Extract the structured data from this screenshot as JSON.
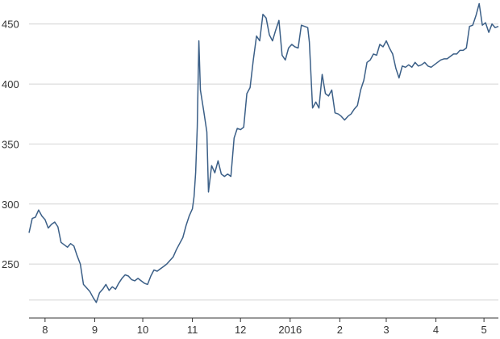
{
  "chart_data": {
    "type": "line",
    "title": "",
    "xlabel": "",
    "ylabel": "",
    "ylim": [
      205,
      470
    ],
    "grid": true,
    "legend": "none",
    "y_ticks": [
      {
        "value": 250,
        "label": "250"
      },
      {
        "value": 300,
        "label": "300"
      },
      {
        "value": 350,
        "label": "350"
      },
      {
        "value": 400,
        "label": "400"
      },
      {
        "value": 450,
        "label": "450"
      }
    ],
    "x_ticks": [
      {
        "date": "2015-08-01",
        "label": "8"
      },
      {
        "date": "2015-09-01",
        "label": "9"
      },
      {
        "date": "2015-10-01",
        "label": "10"
      },
      {
        "date": "2015-11-01",
        "label": "11"
      },
      {
        "date": "2015-12-01",
        "label": "12"
      },
      {
        "date": "2016-01-01",
        "label": "2016"
      },
      {
        "date": "2016-02-01",
        "label": "2"
      },
      {
        "date": "2016-03-01",
        "label": "3"
      },
      {
        "date": "2016-04-01",
        "label": "4"
      },
      {
        "date": "2016-05-01",
        "label": "5"
      }
    ],
    "x_range": [
      "2015-07-22",
      "2016-05-10"
    ],
    "colors": {
      "line": "#3b5f87",
      "grid": "#d4d4d4",
      "axis": "#333333"
    },
    "series": [
      {
        "points": [
          [
            "2015-07-22",
            276
          ],
          [
            "2015-07-24",
            288
          ],
          [
            "2015-07-26",
            289
          ],
          [
            "2015-07-28",
            295
          ],
          [
            "2015-07-30",
            290
          ],
          [
            "2015-08-01",
            287
          ],
          [
            "2015-08-03",
            280
          ],
          [
            "2015-08-05",
            283
          ],
          [
            "2015-08-07",
            285
          ],
          [
            "2015-08-09",
            281
          ],
          [
            "2015-08-11",
            268
          ],
          [
            "2015-08-13",
            266
          ],
          [
            "2015-08-15",
            264
          ],
          [
            "2015-08-17",
            267
          ],
          [
            "2015-08-19",
            265
          ],
          [
            "2015-08-21",
            257
          ],
          [
            "2015-08-23",
            250
          ],
          [
            "2015-08-25",
            233
          ],
          [
            "2015-08-27",
            230
          ],
          [
            "2015-08-29",
            227
          ],
          [
            "2015-08-31",
            222
          ],
          [
            "2015-09-02",
            218
          ],
          [
            "2015-09-04",
            226
          ],
          [
            "2015-09-06",
            229
          ],
          [
            "2015-09-08",
            233
          ],
          [
            "2015-09-10",
            228
          ],
          [
            "2015-09-12",
            231
          ],
          [
            "2015-09-14",
            229
          ],
          [
            "2015-09-16",
            234
          ],
          [
            "2015-09-18",
            238
          ],
          [
            "2015-09-20",
            241
          ],
          [
            "2015-09-22",
            240
          ],
          [
            "2015-09-24",
            237
          ],
          [
            "2015-09-26",
            236
          ],
          [
            "2015-09-28",
            238
          ],
          [
            "2015-09-30",
            236
          ],
          [
            "2015-10-02",
            234
          ],
          [
            "2015-10-04",
            233
          ],
          [
            "2015-10-06",
            240
          ],
          [
            "2015-10-08",
            245
          ],
          [
            "2015-10-10",
            244
          ],
          [
            "2015-10-12",
            246
          ],
          [
            "2015-10-14",
            248
          ],
          [
            "2015-10-16",
            250
          ],
          [
            "2015-10-18",
            253
          ],
          [
            "2015-10-20",
            256
          ],
          [
            "2015-10-22",
            262
          ],
          [
            "2015-10-24",
            267
          ],
          [
            "2015-10-26",
            272
          ],
          [
            "2015-10-28",
            282
          ],
          [
            "2015-10-30",
            290
          ],
          [
            "2015-11-01",
            296
          ],
          [
            "2015-11-02",
            306
          ],
          [
            "2015-11-03",
            326
          ],
          [
            "2015-11-04",
            364
          ],
          [
            "2015-11-05",
            436
          ],
          [
            "2015-11-06",
            395
          ],
          [
            "2015-11-08",
            378
          ],
          [
            "2015-11-10",
            360
          ],
          [
            "2015-11-11",
            310
          ],
          [
            "2015-11-13",
            332
          ],
          [
            "2015-11-15",
            326
          ],
          [
            "2015-11-17",
            336
          ],
          [
            "2015-11-19",
            325
          ],
          [
            "2015-11-21",
            323
          ],
          [
            "2015-11-23",
            325
          ],
          [
            "2015-11-25",
            323
          ],
          [
            "2015-11-27",
            355
          ],
          [
            "2015-11-29",
            363
          ],
          [
            "2015-12-01",
            362
          ],
          [
            "2015-12-03",
            364
          ],
          [
            "2015-12-05",
            392
          ],
          [
            "2015-12-07",
            397
          ],
          [
            "2015-12-09",
            420
          ],
          [
            "2015-12-11",
            440
          ],
          [
            "2015-12-13",
            436
          ],
          [
            "2015-12-15",
            458
          ],
          [
            "2015-12-17",
            455
          ],
          [
            "2015-12-19",
            441
          ],
          [
            "2015-12-21",
            436
          ],
          [
            "2015-12-23",
            445
          ],
          [
            "2015-12-25",
            453
          ],
          [
            "2015-12-27",
            424
          ],
          [
            "2015-12-29",
            420
          ],
          [
            "2015-12-31",
            430
          ],
          [
            "2016-01-02",
            433
          ],
          [
            "2016-01-04",
            431
          ],
          [
            "2016-01-06",
            430
          ],
          [
            "2016-01-08",
            449
          ],
          [
            "2016-01-10",
            448
          ],
          [
            "2016-01-12",
            447
          ],
          [
            "2016-01-13",
            435
          ],
          [
            "2016-01-15",
            380
          ],
          [
            "2016-01-17",
            385
          ],
          [
            "2016-01-19",
            380
          ],
          [
            "2016-01-21",
            408
          ],
          [
            "2016-01-23",
            392
          ],
          [
            "2016-01-25",
            390
          ],
          [
            "2016-01-27",
            395
          ],
          [
            "2016-01-29",
            376
          ],
          [
            "2016-01-31",
            375
          ],
          [
            "2016-02-02",
            373
          ],
          [
            "2016-02-04",
            370
          ],
          [
            "2016-02-06",
            373
          ],
          [
            "2016-02-08",
            375
          ],
          [
            "2016-02-10",
            379
          ],
          [
            "2016-02-12",
            382
          ],
          [
            "2016-02-14",
            395
          ],
          [
            "2016-02-16",
            403
          ],
          [
            "2016-02-18",
            418
          ],
          [
            "2016-02-20",
            420
          ],
          [
            "2016-02-22",
            425
          ],
          [
            "2016-02-24",
            424
          ],
          [
            "2016-02-26",
            433
          ],
          [
            "2016-02-28",
            431
          ],
          [
            "2016-03-01",
            436
          ],
          [
            "2016-03-03",
            430
          ],
          [
            "2016-03-05",
            425
          ],
          [
            "2016-03-07",
            413
          ],
          [
            "2016-03-09",
            405
          ],
          [
            "2016-03-11",
            415
          ],
          [
            "2016-03-13",
            414
          ],
          [
            "2016-03-15",
            416
          ],
          [
            "2016-03-17",
            414
          ],
          [
            "2016-03-19",
            418
          ],
          [
            "2016-03-21",
            415
          ],
          [
            "2016-03-23",
            416
          ],
          [
            "2016-03-25",
            418
          ],
          [
            "2016-03-27",
            415
          ],
          [
            "2016-03-29",
            414
          ],
          [
            "2016-03-31",
            416
          ],
          [
            "2016-04-02",
            418
          ],
          [
            "2016-04-04",
            420
          ],
          [
            "2016-04-06",
            421
          ],
          [
            "2016-04-08",
            421
          ],
          [
            "2016-04-10",
            423
          ],
          [
            "2016-04-12",
            425
          ],
          [
            "2016-04-14",
            425
          ],
          [
            "2016-04-16",
            428
          ],
          [
            "2016-04-18",
            428
          ],
          [
            "2016-04-20",
            430
          ],
          [
            "2016-04-22",
            448
          ],
          [
            "2016-04-24",
            449
          ],
          [
            "2016-04-26",
            457
          ],
          [
            "2016-04-28",
            467
          ],
          [
            "2016-04-30",
            449
          ],
          [
            "2016-05-02",
            451
          ],
          [
            "2016-05-04",
            443
          ],
          [
            "2016-05-06",
            450
          ],
          [
            "2016-05-08",
            447
          ],
          [
            "2016-05-10",
            448
          ]
        ]
      }
    ]
  }
}
